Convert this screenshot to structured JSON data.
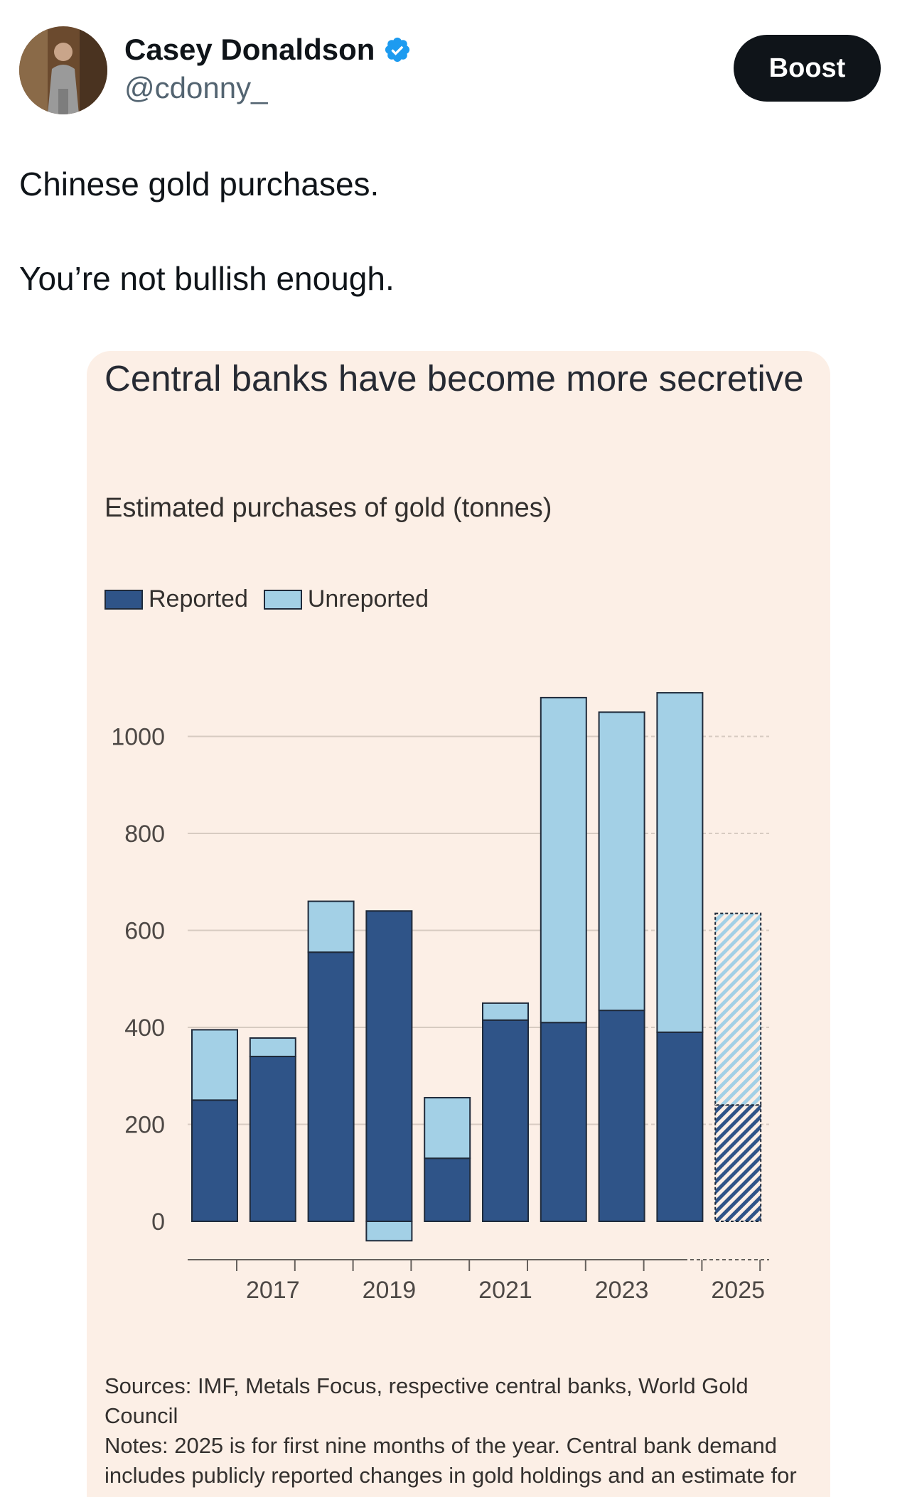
{
  "post": {
    "author_name": "Casey Donaldson",
    "handle": "@cdonny_",
    "boost_label": "Boost",
    "text_line1": "Chinese gold purchases.",
    "text_line2": "You’re not bullish enough."
  },
  "colors": {
    "reported": "#2f5488",
    "unreported": "#a3d0e6",
    "background": "#fcefe6",
    "verified": "#1d9bf0"
  },
  "chart_data": {
    "type": "bar",
    "stacked": true,
    "title": "Central banks have become more secretive",
    "subtitle": "Estimated purchases of gold (tonnes)",
    "categories": [
      "2016",
      "2017",
      "2018",
      "2019",
      "2020",
      "2021",
      "2022",
      "2023",
      "2024",
      "2025"
    ],
    "x_tick_labels": [
      "2017",
      "2019",
      "2021",
      "2023",
      "2025"
    ],
    "series": [
      {
        "name": "Reported",
        "values": [
          250,
          340,
          555,
          640,
          130,
          415,
          410,
          435,
          390,
          240
        ]
      },
      {
        "name": "Unreported",
        "values": [
          145,
          38,
          105,
          -40,
          125,
          35,
          670,
          615,
          700,
          395
        ]
      }
    ],
    "estimated_categories": [
      "2025"
    ],
    "y_ticks": [
      0,
      200,
      400,
      600,
      800,
      1000
    ],
    "ylim": [
      -100,
      1150
    ],
    "legend": [
      "Reported",
      "Unreported"
    ],
    "legend_position": "top-left",
    "sources": "Sources: IMF, Metals Focus, respective central banks, World Gold Council",
    "notes": "Notes: 2025 is for first nine months of the year. Central bank demand includes publicly reported changes in gold holdings and an estimate for"
  }
}
